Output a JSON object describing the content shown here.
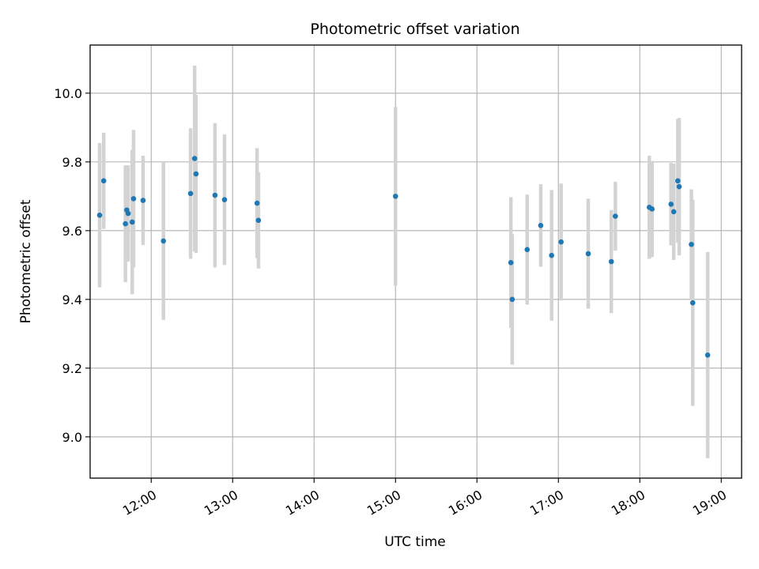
{
  "chart_data": {
    "type": "scatter",
    "title": "Photometric offset variation",
    "xlabel": "UTC time",
    "ylabel": "Photometric offset",
    "xlim": [
      "11:15",
      "19:15"
    ],
    "ylim": [
      8.88,
      10.14
    ],
    "grid": true,
    "x_ticks": [
      "12:00",
      "13:00",
      "14:00",
      "15:00",
      "16:00",
      "17:00",
      "18:00",
      "19:00"
    ],
    "y_ticks": [
      "9.0",
      "9.2",
      "9.4",
      "9.6",
      "9.8",
      "10.0"
    ],
    "colors": {
      "point": "#1f77b4",
      "errorbar": "#d3d3d3",
      "grid": "#b0b0b0"
    },
    "points": [
      {
        "x": "11:22",
        "y": 9.645,
        "err": 0.21
      },
      {
        "x": "11:25",
        "y": 9.745,
        "err": 0.14
      },
      {
        "x": "11:41",
        "y": 9.62,
        "err": 0.17
      },
      {
        "x": "11:42",
        "y": 9.66,
        "err": 0.13
      },
      {
        "x": "11:43",
        "y": 9.65,
        "err": 0.14
      },
      {
        "x": "11:46",
        "y": 9.625,
        "err": 0.21
      },
      {
        "x": "11:47",
        "y": 9.693,
        "err": 0.2
      },
      {
        "x": "11:54",
        "y": 9.688,
        "err": 0.13
      },
      {
        "x": "12:09",
        "y": 9.57,
        "err": 0.23
      },
      {
        "x": "12:29",
        "y": 9.708,
        "err": 0.19
      },
      {
        "x": "12:32",
        "y": 9.81,
        "err": 0.27
      },
      {
        "x": "12:33",
        "y": 9.765,
        "err": 0.23
      },
      {
        "x": "12:47",
        "y": 9.703,
        "err": 0.21
      },
      {
        "x": "12:54",
        "y": 9.69,
        "err": 0.19
      },
      {
        "x": "13:18",
        "y": 9.68,
        "err": 0.16
      },
      {
        "x": "13:19",
        "y": 9.63,
        "err": 0.14
      },
      {
        "x": "15:00",
        "y": 9.7,
        "err": 0.26
      },
      {
        "x": "16:25",
        "y": 9.507,
        "err": 0.19
      },
      {
        "x": "16:26",
        "y": 9.4,
        "err": 0.19
      },
      {
        "x": "16:37",
        "y": 9.545,
        "err": 0.16
      },
      {
        "x": "16:47",
        "y": 9.615,
        "err": 0.12
      },
      {
        "x": "16:55",
        "y": 9.528,
        "err": 0.19
      },
      {
        "x": "17:02",
        "y": 9.567,
        "err": 0.17
      },
      {
        "x": "17:22",
        "y": 9.533,
        "err": 0.16
      },
      {
        "x": "17:39",
        "y": 9.51,
        "err": 0.15
      },
      {
        "x": "17:42",
        "y": 9.642,
        "err": 0.1
      },
      {
        "x": "18:07",
        "y": 9.668,
        "err": 0.15
      },
      {
        "x": "18:09",
        "y": 9.663,
        "err": 0.14
      },
      {
        "x": "18:23",
        "y": 9.677,
        "err": 0.12
      },
      {
        "x": "18:25",
        "y": 9.655,
        "err": 0.14
      },
      {
        "x": "18:28",
        "y": 9.745,
        "err": 0.18
      },
      {
        "x": "18:29",
        "y": 9.728,
        "err": 0.2
      },
      {
        "x": "18:38",
        "y": 9.56,
        "err": 0.16
      },
      {
        "x": "18:39",
        "y": 9.39,
        "err": 0.3
      },
      {
        "x": "18:50",
        "y": 9.238,
        "err": 0.3
      }
    ]
  }
}
